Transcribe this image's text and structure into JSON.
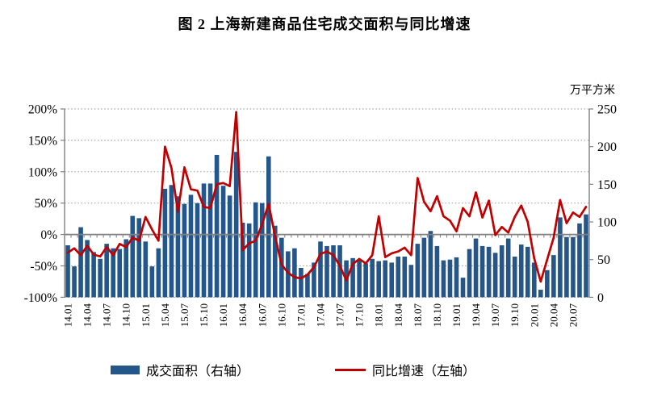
{
  "title": "图 2 上海新建商品住宅成交面积与同比增速",
  "right_axis_unit": "万平方米",
  "legend": {
    "bars_label": "成交面积（右轴）",
    "line_label": "同比增速（左轴）"
  },
  "colors": {
    "bar": "#25568A",
    "line": "#C00000",
    "grid": "#A6A6A6",
    "axis": "#808080",
    "text": "#000000"
  },
  "chart_data": {
    "type": "bar",
    "subtype": "bar+line-dual-axis",
    "categories": [
      "14.01",
      "14.02",
      "14.03",
      "14.04",
      "14.05",
      "14.06",
      "14.07",
      "14.08",
      "14.09",
      "14.10",
      "14.11",
      "14.12",
      "15.01",
      "15.02",
      "15.03",
      "15.04",
      "15.05",
      "15.06",
      "15.07",
      "15.08",
      "15.09",
      "15.10",
      "15.11",
      "15.12",
      "16.01",
      "16.02",
      "16.03",
      "16.04",
      "16.05",
      "16.06",
      "16.07",
      "16.08",
      "16.09",
      "16.10",
      "16.11",
      "16.12",
      "17.01",
      "17.02",
      "17.03",
      "17.04",
      "17.05",
      "17.06",
      "17.07",
      "17.08",
      "17.09",
      "17.10",
      "17.11",
      "17.12",
      "18.01",
      "18.02",
      "18.03",
      "18.04",
      "18.05",
      "18.06",
      "18.07",
      "18.08",
      "18.09",
      "18.10",
      "18.11",
      "18.12",
      "19.01",
      "19.02",
      "19.03",
      "19.04",
      "19.05",
      "19.06",
      "19.07",
      "19.08",
      "19.09",
      "19.10",
      "19.11",
      "19.12",
      "20.01",
      "20.02",
      "20.03",
      "20.04",
      "20.05",
      "20.06",
      "20.07",
      "20.08",
      "20.09"
    ],
    "x_label_every": 3,
    "series": [
      {
        "name": "成交面积（右轴）",
        "type": "bar",
        "axis": "right",
        "unit": "万平方米",
        "values": [
          69,
          41,
          93,
          76,
          60,
          51,
          71,
          65,
          64,
          77,
          108,
          105,
          74,
          41,
          65,
          144,
          149,
          134,
          124,
          136,
          125,
          151,
          151,
          189,
          148,
          135,
          193,
          99,
          98,
          126,
          125,
          187,
          95,
          79,
          61,
          65,
          39,
          31,
          46,
          74,
          68,
          69,
          69,
          49,
          52,
          49,
          45,
          51,
          48,
          49,
          46,
          54,
          54,
          43,
          71,
          79,
          88,
          68,
          49,
          50,
          53,
          26,
          64,
          78,
          68,
          67,
          59,
          69,
          78,
          54,
          70,
          67,
          46,
          10,
          36,
          56,
          106,
          80,
          80,
          98,
          110
        ]
      },
      {
        "name": "同比增速（左轴）",
        "type": "line",
        "axis": "left",
        "unit": "%",
        "values": [
          -29,
          -22,
          -33,
          -18,
          -32,
          -35,
          -20,
          -33,
          -15,
          -20,
          -5,
          -10,
          28,
          8,
          -10,
          140,
          106,
          36,
          107,
          72,
          70,
          44,
          42,
          80,
          82,
          77,
          195,
          -25,
          -14,
          -10,
          16,
          49,
          -3,
          -48,
          -61,
          -68,
          -70,
          -64,
          -52,
          -31,
          -27,
          -33,
          -50,
          -73,
          -47,
          -39,
          -46,
          -33,
          29,
          -36,
          -30,
          -27,
          -21,
          -33,
          90,
          52,
          37,
          61,
          29,
          22,
          5,
          42,
          29,
          67,
          27,
          54,
          -1,
          12,
          3,
          28,
          46,
          20,
          -38,
          -75,
          -40,
          -5,
          55,
          18,
          35,
          28,
          44
        ]
      }
    ],
    "left_axis": {
      "format": "percent",
      "min": -100,
      "max": 200,
      "tick_values": [
        200,
        150,
        100,
        50,
        0,
        -50,
        -100
      ],
      "tick_labels": [
        "200%",
        "150%",
        "100%",
        "50%",
        "0%",
        "-50%",
        "-100%"
      ]
    },
    "right_axis": {
      "min": 0,
      "max": 250,
      "tick_values": [
        250,
        200,
        150,
        100,
        50,
        0
      ],
      "tick_labels": [
        "250",
        "200",
        "150",
        "100",
        "50",
        "0"
      ]
    },
    "grid": "dotted-horizontal",
    "legend_position": "bottom"
  }
}
